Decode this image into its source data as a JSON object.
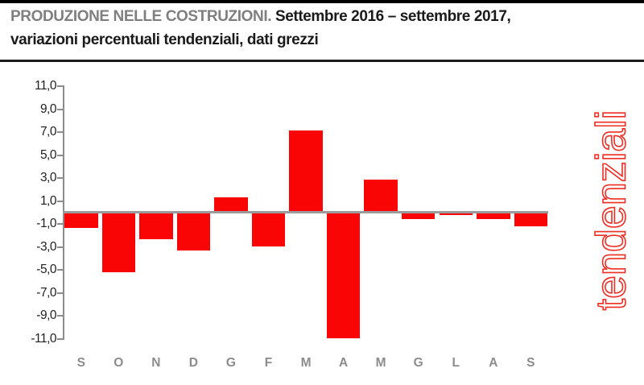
{
  "header": {
    "title_bold": "PRODUZIONE NELLE COSTRUZIONI.",
    "title_rest": " Settembre 2016 – settembre 2017,",
    "subtitle": "variazioni percentuali tendenziali, dati grezzi"
  },
  "side_label": "tendenziali",
  "colors": {
    "bar_red": "#fa0505",
    "side_label_red": "#ee2e24",
    "title_gray": "#7f7f7f",
    "axis_gray": "#8c8c8c",
    "text_black": "#1a1a1a"
  },
  "chart_data": {
    "type": "bar",
    "title": "PRODUZIONE NELLE COSTRUZIONI. Settembre 2016 – settembre 2017, variazioni percentuali tendenziali, dati grezzi",
    "categories": [
      "S",
      "O",
      "N",
      "D",
      "G",
      "F",
      "M",
      "A",
      "M",
      "G",
      "L",
      "A",
      "S"
    ],
    "values": [
      -1.4,
      -5.3,
      -2.4,
      -3.4,
      1.3,
      -3.0,
      7.1,
      -11.0,
      2.8,
      -0.6,
      -0.3,
      -0.6,
      -1.3
    ],
    "y_tick_labels": [
      "11,0",
      "9,0",
      "7,0",
      "5,0",
      "3,0",
      "1,0",
      "-1,0",
      "-3,0",
      "-5,0",
      "-7,0",
      "-9,0",
      "-11,0"
    ],
    "y_tick_values": [
      11,
      9,
      7,
      5,
      3,
      1,
      -1,
      -3,
      -5,
      -7,
      -9,
      -11
    ],
    "ylim": [
      -11,
      11
    ],
    "xlabel": "",
    "ylabel": "",
    "grid": false,
    "zero_line": true,
    "legend": null
  }
}
